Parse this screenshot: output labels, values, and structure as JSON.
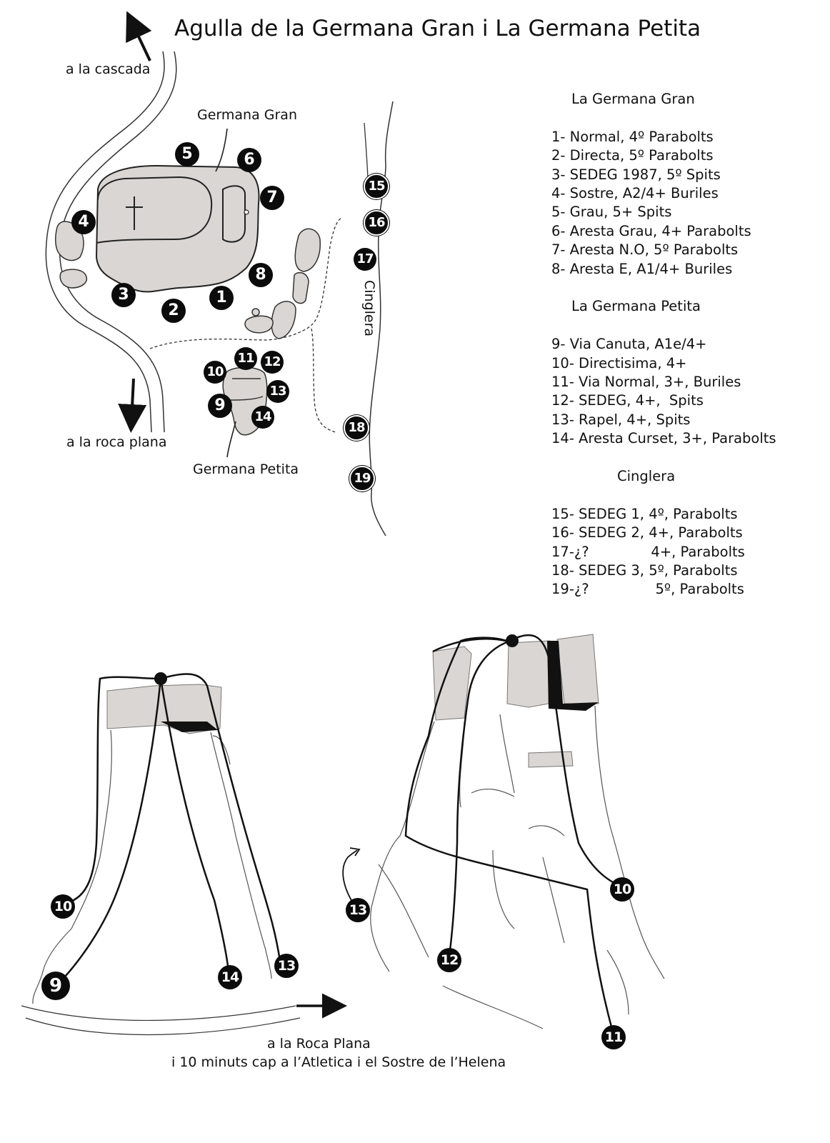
{
  "title": "Agulla de la Germana Gran i La Germana Petita",
  "map_labels": {
    "cascada": "a la cascada",
    "germana_gran": "Germana Gran",
    "roca_plana": "a la roca plana",
    "germana_petita": "Germana Petita",
    "cinglera": "Cinglera",
    "roca_plana_bottom": "a la Roca Plana",
    "atletica": "i 10 minuts cap a l’Atletica i el Sostre de l’Helena"
  },
  "legend": {
    "gran_title": "La Germana Gran",
    "gran_routes": [
      "1- Normal, 4º Parabolts",
      "2- Directa, 5º Parabolts",
      "3- SEDEG 1987, 5º Spits",
      "4- Sostre, A2/4+ Buriles",
      "5- Grau, 5+ Spits",
      "6- Aresta Grau, 4+ Parabolts",
      "7- Aresta N.O, 5º Parabolts",
      "8- Aresta E, A1/4+ Buriles"
    ],
    "petita_title": "La Germana Petita",
    "petita_routes": [
      "9- Via Canuta, A1e/4+",
      "10- Directisima, 4+",
      "11- Via Normal, 3+, Buriles",
      "12- SEDEG, 4+,  Spits",
      "13- Rapel, 4+, Spits",
      "14- Aresta Curset, 3+, Parabolts"
    ],
    "cinglera_title": "Cinglera",
    "cinglera_routes": [
      "15- SEDEG 1, 4º, Parabolts",
      "16- SEDEG 2, 4+, Parabolts",
      "17-¿?              4+, Parabolts",
      "18- SEDEG 3, 5º, Parabolts",
      "19-¿?               5º, Parabolts"
    ]
  },
  "badges": {
    "b1": "1",
    "b2": "2",
    "b3": "3",
    "b4": "4",
    "b5": "5",
    "b6": "6",
    "b7": "7",
    "b8": "8",
    "b9": "9",
    "b10": "10",
    "b11": "11",
    "b12": "12",
    "b13": "13",
    "b14": "14",
    "b15": "15",
    "b16": "16",
    "b17": "17",
    "b18": "18",
    "b19": "19",
    "d10": "10",
    "d9": "9",
    "d14": "14",
    "d13": "13",
    "e13": "13",
    "e12": "12",
    "e10": "10",
    "e11": "11"
  },
  "colors": {
    "rock_fill": "#d9d6d3",
    "ink": "#111111"
  }
}
